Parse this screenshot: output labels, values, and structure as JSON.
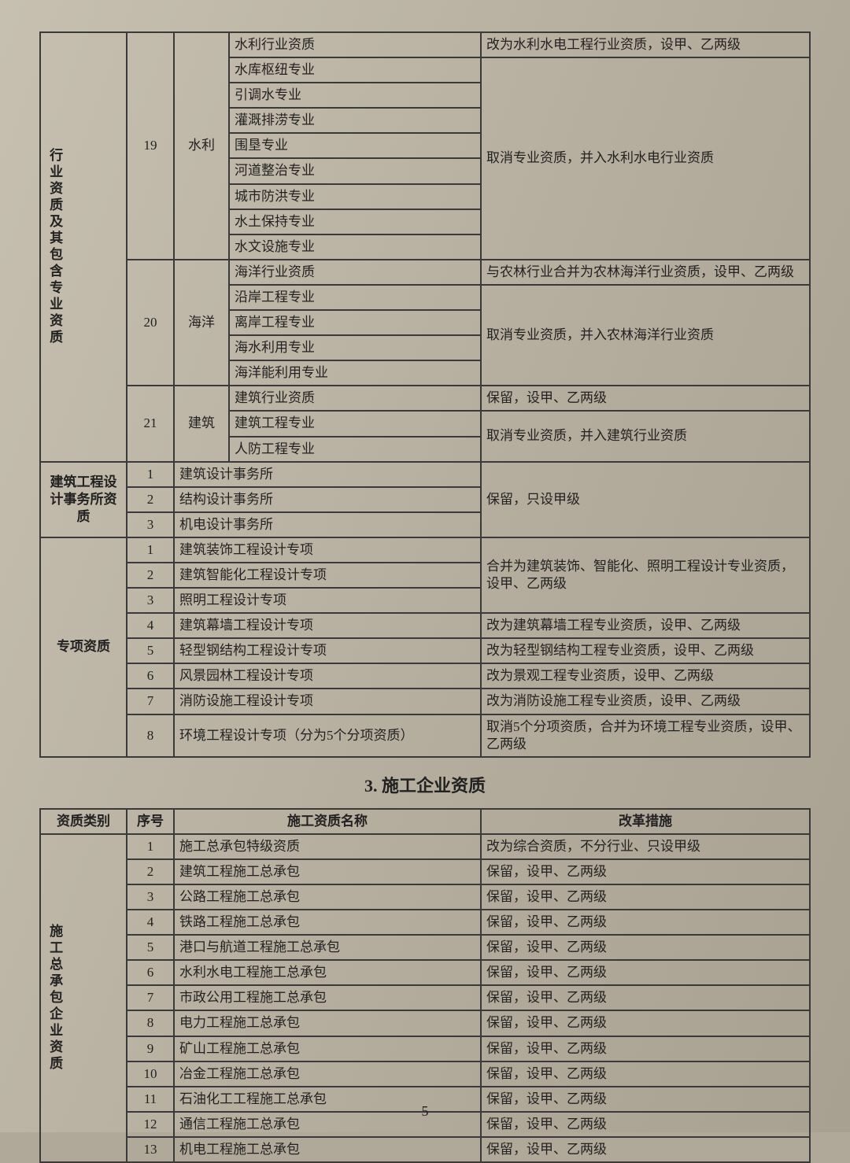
{
  "table1": {
    "cat1": "行业资质及其包含专业资质",
    "cat2": "建筑工程设计事务所资质",
    "cat3": "专项资质",
    "g1": {
      "num": "19",
      "sub": "水利",
      "r1": "水利行业资质",
      "a1": "改为水利水电工程行业资质，设甲、乙两级",
      "r2": "水库枢纽专业",
      "r3": "引调水专业",
      "r4": "灌溉排涝专业",
      "r5": "围垦专业",
      "r6": "河道整治专业",
      "r7": "城市防洪专业",
      "r8": "水土保持专业",
      "r9": "水文设施专业",
      "a2": "取消专业资质，并入水利水电行业资质"
    },
    "g2": {
      "num": "20",
      "sub": "海洋",
      "r1": "海洋行业资质",
      "a1": "与农林行业合并为农林海洋行业资质，设甲、乙两级",
      "r2": "沿岸工程专业",
      "r3": "离岸工程专业",
      "r4": "海水利用专业",
      "r5": "海洋能利用专业",
      "a2": "取消专业资质，并入农林海洋行业资质"
    },
    "g3": {
      "num": "21",
      "sub": "建筑",
      "r1": "建筑行业资质",
      "a1": "保留，设甲、乙两级",
      "r2": "建筑工程专业",
      "r3": "人防工程专业",
      "a2": "取消专业资质，并入建筑行业资质"
    },
    "office": {
      "n1": "1",
      "r1": "建筑设计事务所",
      "n2": "2",
      "r2": "结构设计事务所",
      "n3": "3",
      "r3": "机电设计事务所",
      "a": "保留，只设甲级"
    },
    "spec": {
      "n1": "1",
      "r1": "建筑装饰工程设计专项",
      "n2": "2",
      "r2": "建筑智能化工程设计专项",
      "n3": "3",
      "r3": "照明工程设计专项",
      "a1": "合并为建筑装饰、智能化、照明工程设计专业资质，设甲、乙两级",
      "n4": "4",
      "r4": "建筑幕墙工程设计专项",
      "a4": "改为建筑幕墙工程专业资质，设甲、乙两级",
      "n5": "5",
      "r5": "轻型钢结构工程设计专项",
      "a5": "改为轻型钢结构工程专业资质，设甲、乙两级",
      "n6": "6",
      "r6": "风景园林工程设计专项",
      "a6": "改为景观工程专业资质，设甲、乙两级",
      "n7": "7",
      "r7": "消防设施工程设计专项",
      "a7": "改为消防设施工程专业资质，设甲、乙两级",
      "n8": "8",
      "r8": "环境工程设计专项（分为5个分项资质）",
      "a8": "取消5个分项资质，合并为环境工程专业资质，设甲、乙两级"
    }
  },
  "section2_title": "3. 施工企业资质",
  "table2": {
    "h1": "资质类别",
    "h2": "序号",
    "h3": "施工资质名称",
    "h4": "改革措施",
    "cat": "施工总承包企业资质",
    "r1": {
      "n": "1",
      "name": "施工总承包特级资质",
      "a": "改为综合资质，不分行业、只设甲级"
    },
    "r2": {
      "n": "2",
      "name": "建筑工程施工总承包",
      "a": "保留，设甲、乙两级"
    },
    "r3": {
      "n": "3",
      "name": "公路工程施工总承包",
      "a": "保留，设甲、乙两级"
    },
    "r4": {
      "n": "4",
      "name": "铁路工程施工总承包",
      "a": "保留，设甲、乙两级"
    },
    "r5": {
      "n": "5",
      "name": "港口与航道工程施工总承包",
      "a": "保留，设甲、乙两级"
    },
    "r6": {
      "n": "6",
      "name": "水利水电工程施工总承包",
      "a": "保留，设甲、乙两级"
    },
    "r7": {
      "n": "7",
      "name": "市政公用工程施工总承包",
      "a": "保留，设甲、乙两级"
    },
    "r8": {
      "n": "8",
      "name": "电力工程施工总承包",
      "a": "保留，设甲、乙两级"
    },
    "r9": {
      "n": "9",
      "name": "矿山工程施工总承包",
      "a": "保留，设甲、乙两级"
    },
    "r10": {
      "n": "10",
      "name": "冶金工程施工总承包",
      "a": "保留，设甲、乙两级"
    },
    "r11": {
      "n": "11",
      "name": "石油化工工程施工总承包",
      "a": "保留，设甲、乙两级"
    },
    "r12": {
      "n": "12",
      "name": "通信工程施工总承包",
      "a": "保留，设甲、乙两级"
    },
    "r13": {
      "n": "13",
      "name": "机电工程施工总承包",
      "a": "保留，设甲、乙两级"
    }
  },
  "page_number": "5"
}
